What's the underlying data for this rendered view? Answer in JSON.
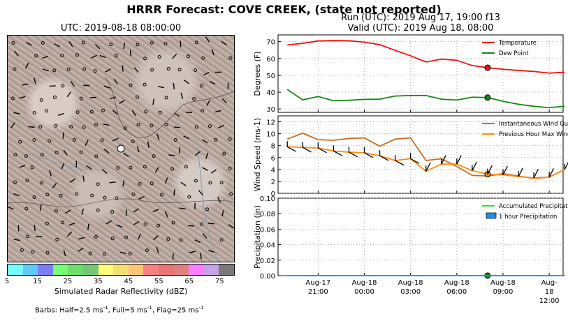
{
  "title": "HRRR Forecast: COVE CREEK, (state not reported)",
  "map": {
    "title": "UTC: 2019-08-18 08:00:00",
    "colorbar": {
      "colors": [
        "#76fafa",
        "#62c8f8",
        "#7c7ef8",
        "#76fe76",
        "#6fdc6f",
        "#76c676",
        "#fdfd76",
        "#f4df72",
        "#fcc57a",
        "#fc7f7f",
        "#ea7373",
        "#e08181",
        "#fe7ffe",
        "#c5a2e5",
        "#7a7a7a"
      ],
      "ticks": [
        "5",
        "15",
        "25",
        "35",
        "45",
        "55",
        "65",
        "75"
      ],
      "label": "Simulated Radar Reflectivity (dBZ)"
    },
    "barbs_note_prefix": "Barbs: Half=2.5 ms",
    "barbs_note_full": ", Full=5 ms",
    "barbs_note_flag": ", Flag=25 ms",
    "barbs_note_exp": "-1"
  },
  "run_line1": "Run (UTC): 2019 Aug 17, 19:00 f13",
  "run_line2": "Valid (UTC): 2019 Aug 18, 08:00",
  "x_ticks": [
    {
      "h": 2,
      "line1": "Aug-17",
      "line2": "21:00"
    },
    {
      "h": 5,
      "line1": "Aug-18",
      "line2": "00:00"
    },
    {
      "h": 8,
      "line1": "Aug-18",
      "line2": "03:00"
    },
    {
      "h": 11,
      "line1": "Aug-18",
      "line2": "06:00"
    },
    {
      "h": 14,
      "line1": "Aug-18",
      "line2": "09:00"
    },
    {
      "h": 17,
      "line1": "Aug-18",
      "line2": "12:00"
    }
  ],
  "chart_data": [
    {
      "type": "line",
      "ylabel": "Degrees (F)",
      "ylim": [
        28,
        74
      ],
      "yticks": [
        30,
        40,
        50,
        60,
        70
      ],
      "x_hours_from_run": [
        0,
        1,
        2,
        3,
        4,
        5,
        6,
        7,
        8,
        9,
        10,
        11,
        12,
        13,
        14,
        15,
        16,
        17,
        18
      ],
      "series": [
        {
          "name": "Temperature",
          "color": "#ee1111",
          "values": [
            68,
            69,
            70.4,
            70.6,
            70.5,
            69.7,
            68.2,
            64.8,
            61.6,
            57.9,
            59.6,
            58.9,
            55.8,
            54.5,
            53.6,
            52.9,
            52.3,
            51.3,
            51.8
          ]
        },
        {
          "name": "Dew Point",
          "color": "#118811",
          "values": [
            41.6,
            35.4,
            37.4,
            34.9,
            35.2,
            35.7,
            35.8,
            37.7,
            38,
            38,
            35.8,
            35.3,
            37,
            36.8,
            34.6,
            32.8,
            31.6,
            30.8,
            31.6
          ]
        }
      ],
      "marker_hour": 13,
      "legend": "top-right",
      "grid": true
    },
    {
      "type": "line",
      "ylabel": "Wind Speed (ms-1)",
      "ylim": [
        0,
        13
      ],
      "yticks": [
        0,
        2,
        4,
        6,
        8,
        10,
        12
      ],
      "series": [
        {
          "name": "Instantaneous Wind Gust",
          "color": "#d2691e",
          "values": [
            9.1,
            10.1,
            9,
            8.9,
            9.2,
            9.3,
            7.9,
            9.1,
            9.3,
            5.5,
            5.8,
            4.5,
            3,
            2.9,
            3.3,
            2.9,
            2.5,
            2.7,
            4
          ]
        },
        {
          "name": "Previous Hour Max Wind",
          "color": "#ff8c00",
          "values": [
            7.8,
            7.7,
            7.6,
            7.1,
            6.9,
            6.8,
            6.3,
            5.5,
            5.8,
            3.7,
            4.9,
            4.9,
            3.8,
            3.2,
            3.1,
            2.8,
            2.6,
            2.7,
            4
          ]
        }
      ],
      "marker_hour": 13,
      "legend": "top-right",
      "grid": true
    },
    {
      "type": "line",
      "ylabel": "Precipitation (in)",
      "ylim": [
        0,
        0.1
      ],
      "yticks": [
        "0.00",
        "0.02",
        "0.04",
        "0.06",
        "0.08",
        "0.10"
      ],
      "series": [
        {
          "name": "Accumulated Precipitation",
          "color": "#33dd33",
          "values": [
            0,
            0,
            0,
            0,
            0,
            0,
            0,
            0,
            0,
            0,
            0,
            0,
            0,
            0,
            0,
            0,
            0,
            0,
            0
          ]
        },
        {
          "name": "1 hour Precipitation",
          "color": "#1f8ff0",
          "values": [
            0,
            0,
            0,
            0,
            0,
            0,
            0,
            0,
            0,
            0,
            0,
            0,
            0,
            0,
            0,
            0,
            0,
            0,
            0
          ]
        }
      ],
      "marker_hour": 13,
      "legend": "top-right",
      "grid": true
    }
  ]
}
